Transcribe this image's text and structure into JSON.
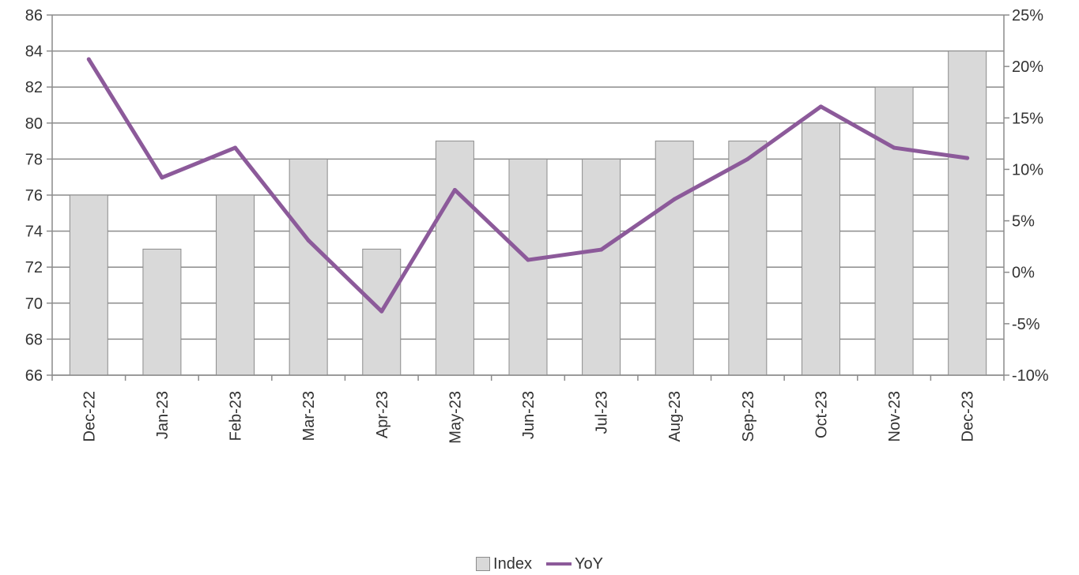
{
  "chart_data": {
    "type": "bar",
    "title": "",
    "xlabel": "",
    "ylabel": "",
    "categories": [
      "Dec-22",
      "Jan-23",
      "Feb-23",
      "Mar-23",
      "Apr-23",
      "May-23",
      "Jun-23",
      "Jul-23",
      "Aug-23",
      "Sep-23",
      "Oct-23",
      "Nov-23",
      "Dec-23"
    ],
    "series": [
      {
        "name": "Index",
        "type": "bar",
        "axis": "left",
        "color": "#d9d9d9",
        "values": [
          76,
          73,
          76,
          78,
          73,
          79,
          78,
          78,
          79,
          79,
          80,
          82,
          84
        ]
      },
      {
        "name": "YoY",
        "type": "line",
        "axis": "right",
        "color": "#8c5a9a",
        "values": [
          20.7,
          9.2,
          12.1,
          3.1,
          -3.8,
          8.0,
          1.2,
          2.2,
          7.1,
          11.0,
          16.1,
          12.1,
          11.1
        ]
      }
    ],
    "y_left": {
      "min": 66,
      "max": 86,
      "step": 2,
      "tick_labels": [
        "66",
        "68",
        "70",
        "72",
        "74",
        "76",
        "78",
        "80",
        "82",
        "84",
        "86"
      ]
    },
    "y_right": {
      "min": -10,
      "max": 25,
      "step": 5,
      "tick_labels": [
        "-10%",
        "-5%",
        "0%",
        "5%",
        "10%",
        "15%",
        "20%",
        "25%"
      ]
    },
    "grid": true,
    "legend_position": "bottom"
  }
}
